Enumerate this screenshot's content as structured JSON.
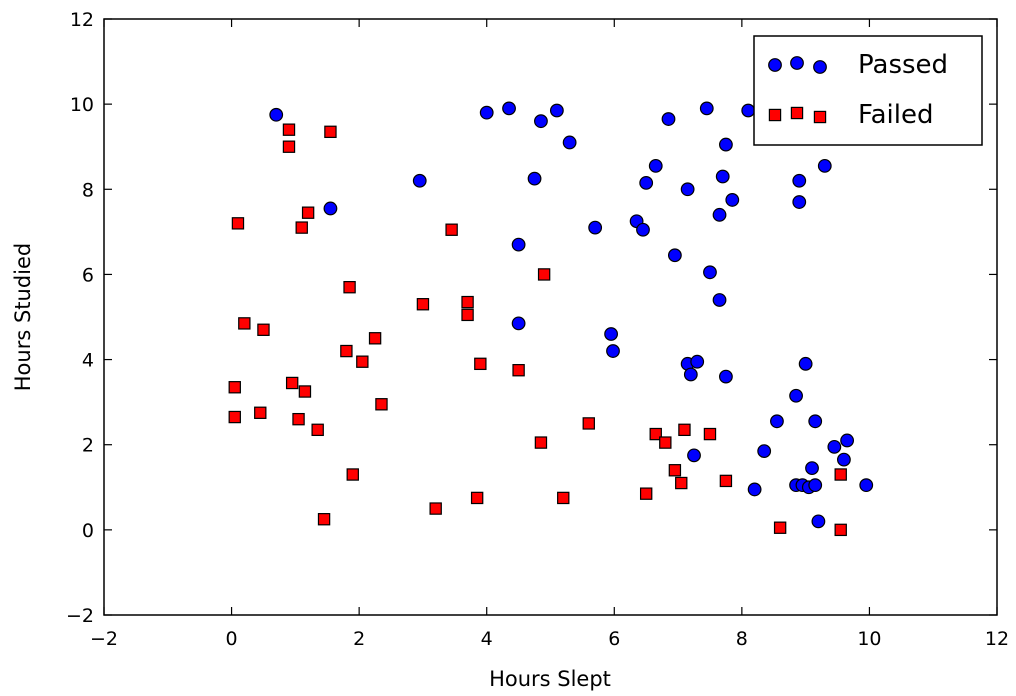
{
  "chart_data": {
    "type": "scatter",
    "title": "",
    "xlabel": "Hours Slept",
    "ylabel": "Hours Studied",
    "xlim": [
      -2,
      12
    ],
    "ylim": [
      -2,
      12
    ],
    "xticks": [
      "−2",
      "0",
      "2",
      "4",
      "6",
      "8",
      "10",
      "12"
    ],
    "yticks": [
      "−2",
      "0",
      "2",
      "4",
      "6",
      "8",
      "10",
      "12"
    ],
    "grid": false,
    "legend_position": "top-right",
    "series": [
      {
        "name": "Passed",
        "marker": "circle",
        "color": "#0000ff",
        "points": [
          [
            0.7,
            9.75
          ],
          [
            1.55,
            7.55
          ],
          [
            2.95,
            8.2
          ],
          [
            4.0,
            9.8
          ],
          [
            4.35,
            9.9
          ],
          [
            4.5,
            6.7
          ],
          [
            4.5,
            4.85
          ],
          [
            4.75,
            8.25
          ],
          [
            4.85,
            9.6
          ],
          [
            5.1,
            9.85
          ],
          [
            5.3,
            9.1
          ],
          [
            5.7,
            7.1
          ],
          [
            5.95,
            4.6
          ],
          [
            5.98,
            4.2
          ],
          [
            6.35,
            7.25
          ],
          [
            6.45,
            7.05
          ],
          [
            6.5,
            8.15
          ],
          [
            6.65,
            8.55
          ],
          [
            6.85,
            9.65
          ],
          [
            6.95,
            6.45
          ],
          [
            7.15,
            8.0
          ],
          [
            7.15,
            3.9
          ],
          [
            7.2,
            3.65
          ],
          [
            7.25,
            1.75
          ],
          [
            7.3,
            3.95
          ],
          [
            7.45,
            9.9
          ],
          [
            7.5,
            6.05
          ],
          [
            7.65,
            7.4
          ],
          [
            7.65,
            5.4
          ],
          [
            7.7,
            8.3
          ],
          [
            7.75,
            9.05
          ],
          [
            7.75,
            3.6
          ],
          [
            7.85,
            7.75
          ],
          [
            8.1,
            9.85
          ],
          [
            8.2,
            0.95
          ],
          [
            8.35,
            1.85
          ],
          [
            8.55,
            2.55
          ],
          [
            8.85,
            3.15
          ],
          [
            8.85,
            1.05
          ],
          [
            8.9,
            8.2
          ],
          [
            8.9,
            7.7
          ],
          [
            8.95,
            1.05
          ],
          [
            9.0,
            3.9
          ],
          [
            9.05,
            1.0
          ],
          [
            9.1,
            1.45
          ],
          [
            9.15,
            1.05
          ],
          [
            9.15,
            2.55
          ],
          [
            9.2,
            0.2
          ],
          [
            9.3,
            8.55
          ],
          [
            9.45,
            1.95
          ],
          [
            9.6,
            1.65
          ],
          [
            9.65,
            2.1
          ],
          [
            9.95,
            1.05
          ]
        ]
      },
      {
        "name": "Failed",
        "marker": "square",
        "color": "#ff0000",
        "points": [
          [
            0.05,
            2.65
          ],
          [
            0.05,
            3.35
          ],
          [
            0.1,
            7.2
          ],
          [
            0.2,
            4.85
          ],
          [
            0.45,
            2.75
          ],
          [
            0.5,
            4.7
          ],
          [
            0.9,
            9.0
          ],
          [
            0.9,
            9.4
          ],
          [
            0.95,
            3.45
          ],
          [
            1.05,
            2.6
          ],
          [
            1.1,
            7.1
          ],
          [
            1.15,
            3.25
          ],
          [
            1.2,
            7.45
          ],
          [
            1.35,
            2.35
          ],
          [
            1.45,
            0.25
          ],
          [
            1.55,
            9.35
          ],
          [
            1.8,
            4.2
          ],
          [
            1.85,
            5.7
          ],
          [
            1.9,
            1.3
          ],
          [
            2.05,
            3.95
          ],
          [
            2.25,
            4.5
          ],
          [
            2.35,
            2.95
          ],
          [
            3.0,
            5.3
          ],
          [
            3.2,
            0.5
          ],
          [
            3.45,
            7.05
          ],
          [
            3.7,
            5.05
          ],
          [
            3.7,
            5.35
          ],
          [
            3.85,
            0.75
          ],
          [
            3.9,
            3.9
          ],
          [
            4.5,
            3.75
          ],
          [
            4.85,
            2.05
          ],
          [
            4.9,
            6.0
          ],
          [
            5.2,
            0.75
          ],
          [
            5.6,
            2.5
          ],
          [
            6.5,
            0.85
          ],
          [
            6.65,
            2.25
          ],
          [
            6.8,
            2.05
          ],
          [
            6.95,
            1.4
          ],
          [
            7.05,
            1.1
          ],
          [
            7.1,
            2.35
          ],
          [
            7.5,
            2.25
          ],
          [
            7.75,
            1.15
          ],
          [
            8.6,
            0.05
          ],
          [
            9.55,
            1.3
          ],
          [
            9.55,
            0.0
          ]
        ]
      }
    ]
  }
}
